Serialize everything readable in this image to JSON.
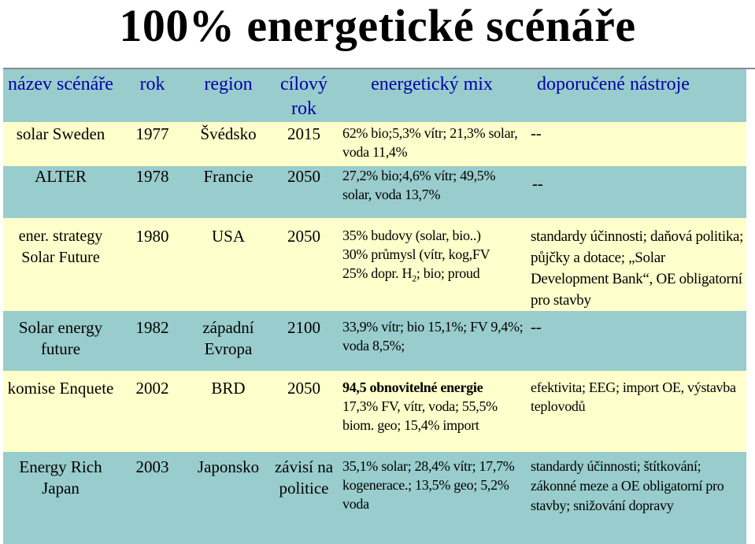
{
  "title": "100% energetické scénáře",
  "headers": {
    "name": "název scénáře",
    "year": "rok",
    "region": "region",
    "target_year": "cílový rok",
    "mix": "energetický mix",
    "tools": "doporučené nástroje"
  },
  "rows": [
    {
      "name": "solar Sweden",
      "year": "1977",
      "region": "Švédsko",
      "target_year": "2015",
      "mix": "62% bio;5,3% vítr; 21,3% solar, voda 11,4%",
      "tools": "--"
    },
    {
      "name": "ALTER",
      "year": "1978",
      "region": "Francie",
      "target_year": "2050",
      "mix": "27,2% bio;4,6% vítr; 49,5% solar, voda 13,7%",
      "tools": "--"
    },
    {
      "name": "ener. strategy Solar Future",
      "year": "1980",
      "region": "USA",
      "target_year": "2050",
      "mix_lines": [
        "35% budovy (solar, bio..)",
        "30% průmysl (vítr, kog,FV",
        "25% dopr. H",
        "2",
        "; bio; proud"
      ],
      "tools": "standardy účinnosti; daňová politika; půjčky a dotace; „Solar Development Bank“, OE obligatorní pro stavby"
    },
    {
      "name": "Solar energy future",
      "year": "1982",
      "region": "západní Evropa",
      "target_year": "2100",
      "mix": "33,9% vítr; bio 15,1%; FV 9,4%; voda 8,5%;",
      "tools": "--"
    },
    {
      "name": "komise Enquete",
      "year": "2002",
      "region": "BRD",
      "target_year": "2050",
      "mix_bold": "94,5 obnovitelné energie",
      "mix_rest": "17,3% FV, vítr, voda; 55,5% biom. geo; 15,4% import",
      "tools": "efektivita; EEG; import OE, výstavba teplovodů"
    },
    {
      "name": "Energy Rich Japan",
      "year": "2003",
      "region": "Japonsko",
      "target_year": "závisí na politice",
      "mix": "35,1% solar; 28,4% vítr; 17,7% kogenerace.; 13,5% geo; 5,2% voda",
      "tools": "standardy účinnosti; štítkování; zákonné meze a OE obligatorní pro stavby; snižování dopravy"
    }
  ]
}
